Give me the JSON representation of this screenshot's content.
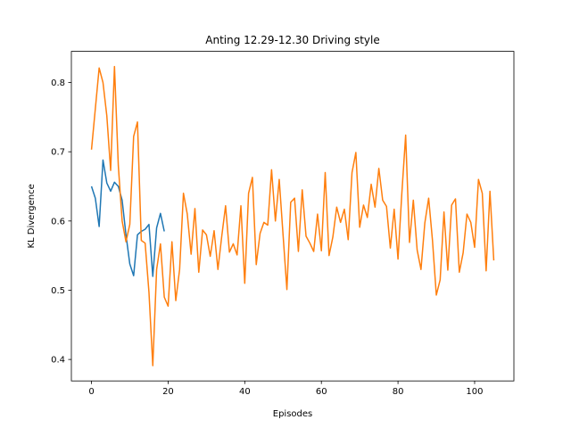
{
  "chart_data": {
    "type": "line",
    "title": "Anting 12.29-12.30 Driving style",
    "xlabel": "Episodes",
    "ylabel": "KL Divergence",
    "xlim": [
      -5.25,
      110.25
    ],
    "ylim": [
      0.369,
      0.845
    ],
    "xticks": [
      0,
      20,
      40,
      60,
      80,
      100
    ],
    "yticks": [
      0.4,
      0.5,
      0.6,
      0.7,
      0.8
    ],
    "xtick_labels": [
      "0",
      "20",
      "40",
      "60",
      "80",
      "100"
    ],
    "ytick_labels": [
      "0.4",
      "0.5",
      "0.6",
      "0.7",
      "0.8"
    ],
    "grid": false,
    "series": [
      {
        "color": "#1f77b4",
        "x": [
          0,
          1,
          2,
          3,
          4,
          5,
          6,
          7,
          8,
          9,
          10,
          11,
          12,
          13,
          14,
          15,
          16,
          17,
          18,
          19
        ],
        "y": [
          0.65,
          0.633,
          0.592,
          0.688,
          0.655,
          0.643,
          0.656,
          0.65,
          0.63,
          0.58,
          0.538,
          0.521,
          0.58,
          0.585,
          0.588,
          0.595,
          0.52,
          0.59,
          0.611,
          0.585
        ]
      },
      {
        "color": "#ff7f0e",
        "x": [
          0,
          1,
          2,
          3,
          4,
          5,
          6,
          7,
          8,
          9,
          10,
          11,
          12,
          13,
          14,
          15,
          16,
          17,
          18,
          19,
          20,
          21,
          22,
          23,
          24,
          25,
          26,
          27,
          28,
          29,
          30,
          31,
          32,
          33,
          34,
          35,
          36,
          37,
          38,
          39,
          40,
          41,
          42,
          43,
          44,
          45,
          46,
          47,
          48,
          49,
          50,
          51,
          52,
          53,
          54,
          55,
          56,
          57,
          58,
          59,
          60,
          61,
          62,
          63,
          64,
          65,
          66,
          67,
          68,
          69,
          70,
          71,
          72,
          73,
          74,
          75,
          76,
          77,
          78,
          79,
          80,
          81,
          82,
          83,
          84,
          85,
          86,
          87,
          88,
          89,
          90,
          91,
          92,
          93,
          94,
          95,
          96,
          97,
          98,
          99,
          100,
          101,
          102,
          103,
          104,
          105
        ],
        "y": [
          0.703,
          0.762,
          0.821,
          0.8,
          0.752,
          0.673,
          0.823,
          0.68,
          0.6,
          0.57,
          0.595,
          0.722,
          0.743,
          0.572,
          0.568,
          0.497,
          0.391,
          0.53,
          0.567,
          0.49,
          0.477,
          0.57,
          0.485,
          0.53,
          0.64,
          0.61,
          0.552,
          0.618,
          0.526,
          0.587,
          0.58,
          0.549,
          0.586,
          0.53,
          0.578,
          0.622,
          0.555,
          0.567,
          0.551,
          0.622,
          0.51,
          0.64,
          0.663,
          0.537,
          0.582,
          0.598,
          0.594,
          0.674,
          0.6,
          0.66,
          0.58,
          0.501,
          0.627,
          0.633,
          0.556,
          0.645,
          0.578,
          0.568,
          0.556,
          0.61,
          0.557,
          0.67,
          0.55,
          0.577,
          0.62,
          0.598,
          0.617,
          0.573,
          0.67,
          0.699,
          0.591,
          0.623,
          0.605,
          0.653,
          0.62,
          0.676,
          0.63,
          0.621,
          0.561,
          0.617,
          0.545,
          0.64,
          0.724,
          0.569,
          0.63,
          0.558,
          0.53,
          0.597,
          0.633,
          0.572,
          0.493,
          0.515,
          0.613,
          0.529,
          0.623,
          0.632,
          0.526,
          0.554,
          0.61,
          0.598,
          0.562,
          0.66,
          0.64,
          0.528,
          0.643,
          0.543
        ]
      }
    ]
  }
}
